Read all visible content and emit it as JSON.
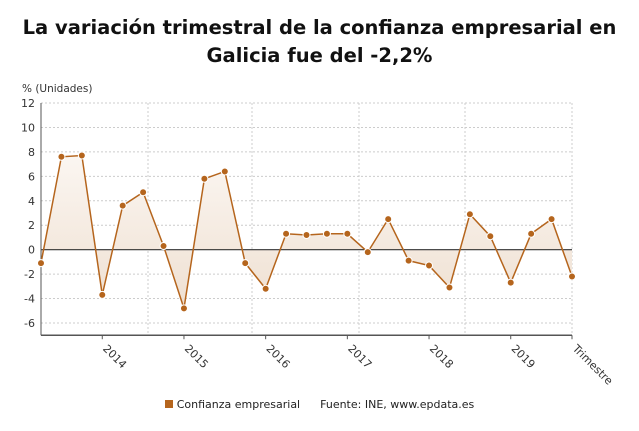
{
  "chart_data": {
    "type": "area",
    "title": "La variación trimestral de la confianza empresarial en Galicia fue del -2,2%",
    "ylabel": "% (Unidades)",
    "xlabel": "Trimestre",
    "ylim": [
      -7,
      12
    ],
    "yticks": [
      -6,
      -4,
      -2,
      0,
      2,
      4,
      6,
      8,
      10,
      12
    ],
    "xticks": [
      {
        "index": 3,
        "label": "2014"
      },
      {
        "index": 7,
        "label": "2015"
      },
      {
        "index": 11,
        "label": "2016"
      },
      {
        "index": 15,
        "label": "2017"
      },
      {
        "index": 19,
        "label": "2018"
      },
      {
        "index": 23,
        "label": "2019"
      },
      {
        "index": 26,
        "label": "Trimestre"
      }
    ],
    "grid": true,
    "legend_position": "bottom",
    "series": [
      {
        "name": "Confianza empresarial",
        "color": "#b5651d",
        "values": [
          -1.1,
          7.6,
          7.7,
          -3.7,
          3.6,
          4.7,
          0.3,
          -4.8,
          5.8,
          6.4,
          -1.1,
          -3.2,
          1.3,
          1.2,
          1.3,
          1.3,
          -0.2,
          2.5,
          -0.9,
          -1.3,
          -3.1,
          2.9,
          1.1,
          -2.7,
          1.3,
          2.5,
          -2.2
        ]
      }
    ]
  },
  "legend": {
    "series_label": "Confianza empresarial",
    "source": "Fuente: INE, www.epdata.es"
  }
}
